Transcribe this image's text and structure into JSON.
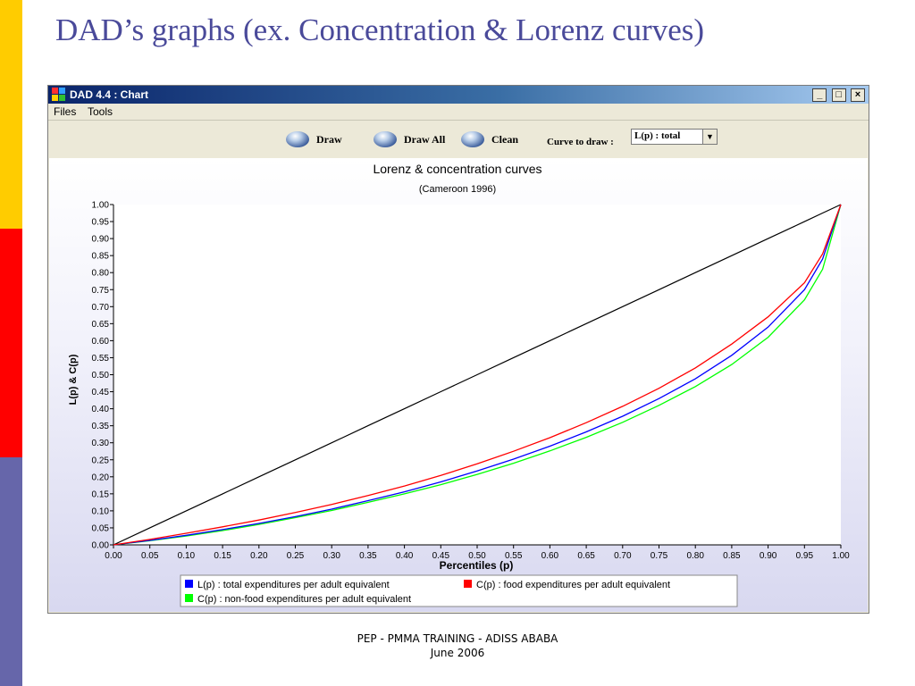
{
  "slide": {
    "title": "DAD’s graphs  (ex. Concentration & Lorenz curves)",
    "footer_line1": "PEP - PMMA TRAINING - ADISS ABABA",
    "footer_line2": "June 2006"
  },
  "window": {
    "title": "DAD 4.4 : Chart",
    "buttons": [
      "_",
      "□",
      "×"
    ]
  },
  "menu": [
    "Files",
    "Tools"
  ],
  "toolbar": {
    "draw_label": "Draw",
    "draw_all_label": "Draw All",
    "clean_label": "Clean",
    "curve_label": "Curve to draw :",
    "curve_value": "L(p)  : total"
  },
  "chart_data": {
    "type": "line",
    "title": "Lorenz & concentration curves",
    "subtitle": "(Cameroon 1996)",
    "xlabel": "Percentiles (p)",
    "ylabel": "L(p) & C(p)",
    "xlim": [
      0,
      1
    ],
    "ylim": [
      0,
      1
    ],
    "xticks": [
      "0.00",
      "0.05",
      "0.10",
      "0.15",
      "0.20",
      "0.25",
      "0.30",
      "0.35",
      "0.40",
      "0.45",
      "0.50",
      "0.55",
      "0.60",
      "0.65",
      "0.70",
      "0.75",
      "0.80",
      "0.85",
      "0.90",
      "0.95",
      "1.00"
    ],
    "yticks": [
      "0.00",
      "0.05",
      "0.10",
      "0.15",
      "0.20",
      "0.25",
      "0.30",
      "0.35",
      "0.40",
      "0.45",
      "0.50",
      "0.55",
      "0.60",
      "0.65",
      "0.70",
      "0.75",
      "0.80",
      "0.85",
      "0.90",
      "0.95",
      "1.00"
    ],
    "x": [
      0,
      0.05,
      0.1,
      0.15,
      0.2,
      0.25,
      0.3,
      0.35,
      0.4,
      0.45,
      0.5,
      0.55,
      0.6,
      0.65,
      0.7,
      0.75,
      0.8,
      0.85,
      0.9,
      0.95,
      0.975,
      1.0
    ],
    "series": [
      {
        "name": "L(p)  : total expenditures per adult equivalent",
        "color": "#0000ff",
        "values": [
          0,
          0.013,
          0.028,
          0.045,
          0.063,
          0.083,
          0.105,
          0.13,
          0.156,
          0.185,
          0.217,
          0.252,
          0.29,
          0.332,
          0.378,
          0.43,
          0.488,
          0.557,
          0.64,
          0.75,
          0.84,
          1.0
        ]
      },
      {
        "name": "C(p) : food expenditures per adult equivalent",
        "color": "#ff0000",
        "values": [
          0,
          0.016,
          0.034,
          0.053,
          0.073,
          0.095,
          0.119,
          0.145,
          0.173,
          0.204,
          0.238,
          0.275,
          0.315,
          0.359,
          0.407,
          0.46,
          0.52,
          0.59,
          0.67,
          0.77,
          0.855,
          1.0
        ]
      },
      {
        "name": "C(p) : non-food expenditures per adult equivalent",
        "color": "#00ff00",
        "values": [
          0,
          0.012,
          0.026,
          0.042,
          0.06,
          0.08,
          0.101,
          0.125,
          0.15,
          0.177,
          0.207,
          0.24,
          0.276,
          0.316,
          0.36,
          0.41,
          0.465,
          0.53,
          0.61,
          0.72,
          0.81,
          1.0
        ]
      },
      {
        "color": "#000000",
        "values": [
          0,
          0.05,
          0.1,
          0.15,
          0.2,
          0.25,
          0.3,
          0.35,
          0.4,
          0.45,
          0.5,
          0.55,
          0.6,
          0.65,
          0.7,
          0.75,
          0.8,
          0.85,
          0.9,
          0.95,
          0.975,
          1.0
        ]
      }
    ],
    "legend_position": "bottom"
  }
}
